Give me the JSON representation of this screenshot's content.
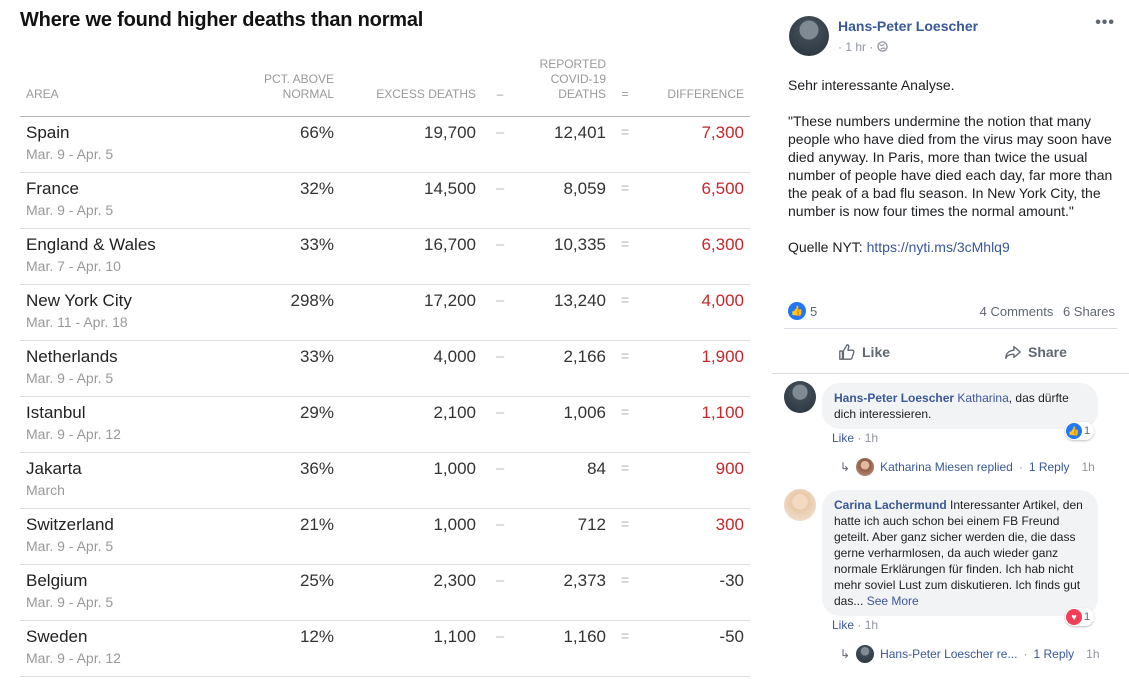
{
  "nyt": {
    "title": "Where we found higher deaths than normal",
    "headers": {
      "area": "AREA",
      "pct_line1": "PCT. ABOVE",
      "pct_line2": "NORMAL",
      "excess": "EXCESS DEATHS",
      "minus": "–",
      "reported_line1": "REPORTED",
      "reported_line2": "COVID-19",
      "reported_line3": "DEATHS",
      "equals": "=",
      "difference": "DIFFERENCE"
    },
    "rows": [
      {
        "area": "Spain",
        "dates": "Mar. 9 - Apr. 5",
        "pct": "66%",
        "excess": "19,700",
        "reported": "12,401",
        "difference": "7,300",
        "sign": "pos"
      },
      {
        "area": "France",
        "dates": "Mar. 9 - Apr. 5",
        "pct": "32%",
        "excess": "14,500",
        "reported": "8,059",
        "difference": "6,500",
        "sign": "pos"
      },
      {
        "area": "England & Wales",
        "dates": "Mar. 7 - Apr. 10",
        "pct": "33%",
        "excess": "16,700",
        "reported": "10,335",
        "difference": "6,300",
        "sign": "pos"
      },
      {
        "area": "New York City",
        "dates": "Mar. 11 - Apr. 18",
        "pct": "298%",
        "excess": "17,200",
        "reported": "13,240",
        "difference": "4,000",
        "sign": "pos"
      },
      {
        "area": "Netherlands",
        "dates": "Mar. 9 - Apr. 5",
        "pct": "33%",
        "excess": "4,000",
        "reported": "2,166",
        "difference": "1,900",
        "sign": "pos"
      },
      {
        "area": "Istanbul",
        "dates": "Mar. 9 - Apr. 12",
        "pct": "29%",
        "excess": "2,100",
        "reported": "1,006",
        "difference": "1,100",
        "sign": "pos"
      },
      {
        "area": "Jakarta",
        "dates": "March",
        "pct": "36%",
        "excess": "1,000",
        "reported": "84",
        "difference": "900",
        "sign": "pos"
      },
      {
        "area": "Switzerland",
        "dates": "Mar. 9 - Apr. 5",
        "pct": "21%",
        "excess": "1,000",
        "reported": "712",
        "difference": "300",
        "sign": "pos"
      },
      {
        "area": "Belgium",
        "dates": "Mar. 9 - Apr. 5",
        "pct": "25%",
        "excess": "2,300",
        "reported": "2,373",
        "difference": "-30",
        "sign": "neg"
      },
      {
        "area": "Sweden",
        "dates": "Mar. 9 - Apr. 12",
        "pct": "12%",
        "excess": "1,100",
        "reported": "1,160",
        "difference": "-50",
        "sign": "neg"
      }
    ],
    "colors": {
      "positive": "#c6262c",
      "negative": "#333333"
    }
  },
  "fb": {
    "author": "Hans-Peter Loescher",
    "time": "1 hr",
    "separator": "·",
    "more": "•••",
    "text_intro": "Sehr interessante Analyse.",
    "text_quote": "\"These numbers undermine the notion that many people who have died from the virus may soon have died anyway. In Paris, more than twice the usual number of people have died each day, far more than the peak of a bad flu season. In New York City, the number is now four times the normal amount.\"",
    "source_label": "Quelle NYT:",
    "source_link": "https://nyti.ms/3cMhlq9",
    "reaction_count": "5",
    "comments": "4 Comments",
    "shares": "6 Shares",
    "like_label": "Like",
    "share_label": "Share",
    "comment_list": [
      {
        "name": "Hans-Peter Loescher",
        "mention": "Katharina",
        "text": ", das dürfte dich interessieren.",
        "like": "Like",
        "time": "1h",
        "reactions": "1",
        "reply": {
          "name": "Katharina Miesen replied",
          "count": "1 Reply",
          "time": "1h"
        }
      },
      {
        "name": "Carina Lachermund",
        "text": "Interessanter Artikel, den hatte ich auch schon bei einem FB Freund geteilt. Aber ganz sicher werden die, die dass gerne verharmlosen, da auch wieder ganz normale Erklärungen für finden. Ich hab nicht mehr soviel Lust zum diskutieren. Ich finds gut das...",
        "see_more": "See More",
        "like": "Like",
        "time": "1h",
        "reactions": "1",
        "reply": {
          "name": "Hans-Peter Loescher re...",
          "count": "1 Reply",
          "time": "1h"
        }
      }
    ]
  }
}
